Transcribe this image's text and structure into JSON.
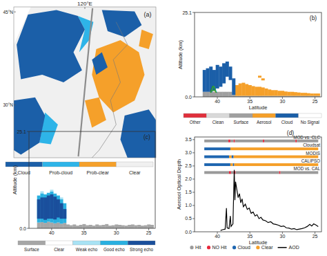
{
  "chart_data": [
    {
      "type": "map",
      "title": "(a)",
      "xlim": [
        108,
        132
      ],
      "ylim": [
        21.5,
        45.8
      ],
      "xticks": [
        {
          "value": 120,
          "label": "120°E"
        }
      ],
      "yticks": [
        {
          "value": 45,
          "label": "45°N"
        },
        {
          "value": 30,
          "label": "30°N"
        }
      ],
      "categories": [
        "Cloud",
        "Prob-cloud",
        "Prob-clear",
        "Clear"
      ],
      "colors": [
        "#1b5fa8",
        "#2eb4e8",
        "#f5a02a",
        "#f0f0f0"
      ],
      "legend": "bottom",
      "series": [
        {
          "color": "#8c8c8c",
          "x": [
            121.3,
            118.9
          ],
          "values": [
            45.6,
            21.7
          ]
        }
      ]
    },
    {
      "type": "profile",
      "title": "(b)",
      "x_label": "Latitude",
      "y_label": "Altitude (km)",
      "xlim": [
        43.5,
        24
      ],
      "ylim": [
        0,
        25.1
      ],
      "xticks": [
        40,
        35,
        30,
        25
      ],
      "yticks": [
        {
          "value": 0,
          "label": "0.0"
        },
        25.1
      ],
      "legend": "bottom",
      "annotations": [
        {
          "text": "A",
          "x": 40.6,
          "y": 1.2,
          "color": "#2e9a3a"
        }
      ],
      "series": [
        {
          "name": "Other",
          "color": "#e0303c",
          "x": [],
          "values": [],
          "base": [],
          "width": 0.5
        },
        {
          "name": "Clean",
          "color": "#d9d9d9",
          "x": [],
          "values": [],
          "base": [],
          "width": 0.5
        },
        {
          "name": "Surface",
          "color": "#a0a0a0",
          "width": 0.5,
          "x": [
            42,
            41.5,
            41,
            40.5,
            40,
            39.5,
            39,
            38.5,
            38,
            37.5,
            37,
            36.5,
            36,
            35.5,
            35,
            34.5,
            34,
            33.5,
            33,
            32.5,
            32,
            31.5,
            31,
            30.5,
            30,
            29.5,
            29,
            28.5,
            28,
            27.5,
            27,
            26.5,
            26,
            25.5,
            25,
            24.5
          ],
          "values": [
            1.5,
            1.5,
            1.5,
            1.5,
            1.5,
            1.5,
            1.5,
            1.5,
            1.5,
            0.6,
            0.3,
            0.3,
            0.3,
            0.3,
            0.3,
            0.3,
            0.3,
            0.3,
            0.3,
            0.3,
            0.3,
            0.3,
            0.3,
            0.3,
            0.3,
            0.3,
            0.3,
            0.3,
            0.3,
            0.3,
            0.3,
            0.3,
            0.3,
            0.3,
            0.3,
            0.3
          ],
          "base": [
            0,
            0,
            0,
            0,
            0,
            0,
            0,
            0,
            0,
            0,
            0,
            0,
            0,
            0,
            0,
            0,
            0,
            0,
            0,
            0,
            0,
            0,
            0,
            0,
            0,
            0,
            0,
            0,
            0,
            0,
            0,
            0,
            0,
            0,
            0,
            0
          ]
        },
        {
          "name": "Aerosol",
          "color": "#f5a02a",
          "width": 0.5,
          "x": [
            37,
            36.5,
            36,
            35.5,
            35,
            34.5,
            34,
            33.5,
            33,
            32.5,
            32,
            31.5,
            31,
            30.5,
            30,
            29.5,
            29,
            28.5,
            28,
            27.5,
            27,
            26.5,
            26,
            25.5,
            25,
            24.5,
            33.5,
            33
          ],
          "values": [
            3.5,
            4,
            4.2,
            3.8,
            3.5,
            3.2,
            3,
            3,
            2.8,
            2.5,
            2.2,
            2,
            2,
            1.8,
            1.8,
            1.6,
            1.5,
            1.5,
            1.4,
            1.3,
            1.2,
            1.2,
            1.1,
            1,
            1,
            1,
            6.3,
            5.5
          ],
          "base": [
            0.3,
            0.3,
            0.3,
            0.3,
            0.3,
            0.3,
            0.3,
            0.3,
            0.3,
            0.3,
            0.3,
            0.3,
            0.3,
            0.3,
            0.3,
            0.3,
            0.3,
            0.3,
            0.3,
            0.3,
            0.3,
            0.3,
            0.3,
            0.3,
            0.3,
            0.3,
            5.7,
            4.9
          ]
        },
        {
          "name": "Cloud",
          "color": "#1b5fa8",
          "width": 0.5,
          "x": [
            42,
            41.5,
            41,
            40.5,
            40,
            39.5,
            39,
            38.5,
            38,
            37.5
          ],
          "values": [
            8,
            8.5,
            9,
            8,
            9.5,
            9,
            10,
            10.5,
            9,
            5.5
          ],
          "base": [
            1.5,
            1.5,
            1.5,
            2,
            2.5,
            3,
            4,
            6,
            5,
            0.6
          ]
        },
        {
          "name": "No Signal",
          "color": "#ffffff",
          "x": [],
          "values": [],
          "base": [],
          "width": 0.5
        }
      ]
    },
    {
      "type": "profile",
      "title": "(c)",
      "y_label": "Altitude (km)",
      "xlim": [
        43.5,
        24
      ],
      "ylim": [
        0,
        25.1
      ],
      "xticks": [
        40,
        35,
        30,
        25
      ],
      "yticks": [
        {
          "value": 0,
          "label": "0.0"
        },
        25.1
      ],
      "legend": "bottom",
      "series": [
        {
          "name": "Surface",
          "color": "#a6a6a6",
          "width": 0.5,
          "x": [
            42,
            41.5,
            41,
            40.5,
            40,
            39.5,
            39,
            38.5,
            38,
            37.5,
            37,
            36.5,
            36,
            35.5,
            35,
            34.5,
            34,
            33.5,
            33,
            32.5,
            32,
            31.5,
            31,
            30.5,
            30,
            29.5,
            29,
            28.5,
            28,
            27.5,
            27,
            26.5,
            26,
            25.5,
            25,
            24.5
          ],
          "values": [
            1.5,
            1.6,
            1.4,
            1.7,
            1.5,
            1.3,
            1.5,
            1.2,
            1.4,
            1.0,
            0.8,
            1.0,
            0.7,
            0.9,
            1.1,
            0.8,
            0.9,
            0.7,
            1.0,
            0.8,
            0.9,
            1.1,
            0.7,
            0.8,
            1.0,
            0.9,
            0.8,
            0.7,
            0.9,
            1.0,
            0.8,
            0.9,
            0.7,
            0.8,
            1.0,
            0.9
          ],
          "base": [
            0,
            0,
            0,
            0,
            0,
            0,
            0,
            0,
            0,
            0,
            0,
            0,
            0,
            0,
            0,
            0,
            0,
            0,
            0,
            0,
            0,
            0,
            0,
            0,
            0,
            0,
            0,
            0,
            0,
            0,
            0,
            0,
            0,
            0,
            0,
            0
          ]
        },
        {
          "name": "Clear",
          "color": "#ffffff",
          "x": [],
          "values": [],
          "base": [],
          "width": 0.5
        },
        {
          "name": "Weak echo",
          "color": "#a8e2f4",
          "width": 0.5,
          "x": [
            41.5,
            40,
            38.5
          ],
          "values": [
            9.6,
            10,
            8
          ],
          "base": [
            8.8,
            9.3,
            7.3
          ]
        },
        {
          "name": "Good echo",
          "color": "#2ab0e0",
          "width": 0.5,
          "x": [
            42,
            41.5,
            41,
            40.5,
            40,
            39.5,
            39,
            38.5,
            38
          ],
          "values": [
            8.5,
            9,
            8.8,
            9.2,
            9.5,
            9,
            8.5,
            7.5,
            6.5
          ],
          "base": [
            1.5,
            1.6,
            1.4,
            1.7,
            1.5,
            1.3,
            1.5,
            1.2,
            1.4
          ]
        },
        {
          "name": "Strong echo",
          "color": "#1a4f9c",
          "width": 0.5,
          "x": [
            42,
            41.5,
            41,
            40.5,
            40,
            39.5,
            39,
            38.5,
            38
          ],
          "values": [
            7.5,
            8,
            8,
            8.5,
            8.8,
            8.2,
            7.5,
            6.5,
            5
          ],
          "base": [
            2.5,
            2.5,
            2.2,
            2.5,
            2.5,
            2.3,
            2.8,
            2.5,
            2.5
          ]
        }
      ]
    },
    {
      "type": "line",
      "title": "(d)",
      "x_label": "Latitude",
      "y_label": "Aerosol Optical Depth",
      "xlim": [
        43.5,
        24
      ],
      "ylim": [
        0,
        3.6
      ],
      "xticks": [
        40,
        35,
        30,
        25
      ],
      "yticks": [
        {
          "value": 0,
          "label": "0.0"
        },
        0.5,
        {
          "value": 1,
          "label": "1.0"
        },
        1.5,
        {
          "value": 2,
          "label": "2.0"
        },
        2.5,
        {
          "value": 3,
          "label": "3.0"
        },
        3.5
      ],
      "legend": "bottom",
      "categories": [
        "Hit",
        "NO Hit",
        "Cloud",
        "Clear"
      ],
      "colors": [
        "#9a9a9a",
        "#e8283c",
        "#1f66b0",
        "#f5a02a"
      ],
      "flags": [
        {
          "name": "MOD vs. CLC",
          "y": 3.45,
          "from": [
            42,
            38.3,
            38,
            37.5,
            37.3,
            33,
            32.8,
            28,
            27.8
          ],
          "to": [
            38.3,
            38,
            37.5,
            37.3,
            33,
            32.8,
            28,
            27.8,
            24.5
          ],
          "class": [
            0,
            1,
            0,
            1,
            0,
            1,
            0,
            1,
            0
          ]
        },
        {
          "name": "Cloudsat",
          "y": 3.15,
          "from": [
            42,
            38
          ],
          "to": [
            38,
            24.5
          ],
          "class": [
            2,
            3
          ]
        },
        {
          "name": "MODIS",
          "y": 2.85,
          "from": [
            42,
            38.2,
            37.8,
            37.5
          ],
          "to": [
            38.2,
            37.8,
            37.5,
            24.5
          ],
          "class": [
            2,
            3,
            2,
            3
          ]
        },
        {
          "name": "CALIPSO",
          "y": 2.55,
          "from": [
            42,
            38,
            37.6,
            37.4
          ],
          "to": [
            38,
            37.6,
            37.4,
            24.5
          ],
          "class": [
            2,
            3,
            2,
            3
          ]
        },
        {
          "name": "MOD vs. CAL",
          "y": 2.25,
          "from": [
            42,
            38.2,
            37.9,
            37.5,
            37.2,
            30.5,
            30.3
          ],
          "to": [
            38.2,
            37.9,
            37.5,
            37.2,
            30.5,
            30.3,
            24.5
          ],
          "class": [
            0,
            1,
            0,
            1,
            0,
            1,
            0
          ]
        }
      ],
      "series": [
        {
          "name": "AOD",
          "color": "#000000",
          "x": [
            39.5,
            39.2,
            38.8,
            38.6,
            38.5,
            38.2,
            38.0,
            37.9,
            37.6,
            37.4,
            37.3,
            37.2,
            37.0,
            36.8,
            36.6,
            36.4,
            36.2,
            36.0,
            35.7,
            35.4,
            35.1,
            34.8,
            34.5,
            34.2,
            33.9,
            33.6,
            33.3,
            33.0,
            32.6,
            32.2,
            31.8,
            31.4,
            31.0,
            30.6,
            30.2,
            29.8,
            29.4,
            29.0,
            28.6,
            28.2,
            27.8,
            27.4,
            27.0,
            26.6,
            26.2,
            25.8,
            25.5,
            25.2,
            24.8,
            24.5
          ],
          "values": [
            0.05,
            0.08,
            0.1,
            0.9,
            0.15,
            0.12,
            0.6,
            0.2,
            0.3,
            2.35,
            1.2,
            1.9,
            1.6,
            1.3,
            1.45,
            1.1,
            1.25,
            0.95,
            1.05,
            0.85,
            0.9,
            0.7,
            0.75,
            0.6,
            0.65,
            0.5,
            0.55,
            0.45,
            0.42,
            0.35,
            0.38,
            0.3,
            0.28,
            0.25,
            0.2,
            0.22,
            0.15,
            0.14,
            0.1,
            0.12,
            0.08,
            0.1,
            0.12,
            0.15,
            0.2,
            0.28,
            0.22,
            0.3,
            0.25,
            0.2
          ]
        }
      ]
    }
  ]
}
